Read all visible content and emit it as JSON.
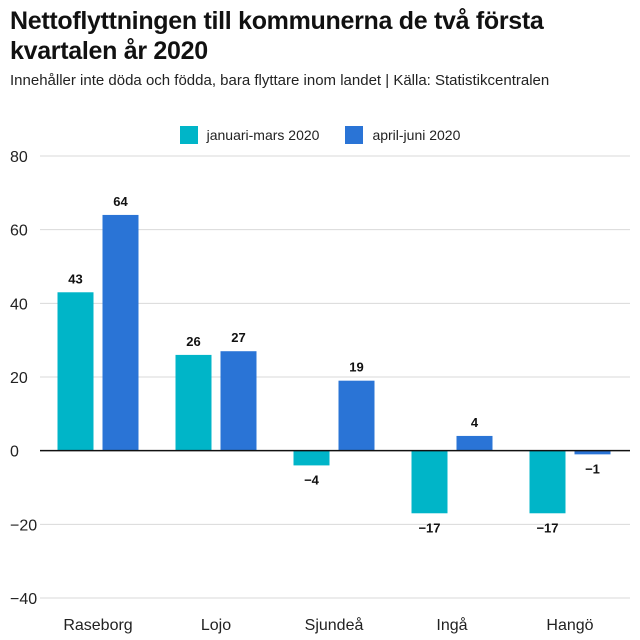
{
  "chart_data": {
    "type": "bar",
    "title": "Nettoflyttningen till kommunerna de två första kvartalen år 2020",
    "subtitle": "Innehåller inte döda och födda, bara flyttare inom landet | Källa: Statistikcentralen",
    "categories": [
      "Raseborg",
      "Lojo",
      "Sjundeå",
      "Ingå",
      "Hangö"
    ],
    "series": [
      {
        "name": "januari-mars 2020",
        "color": "#00b5c8",
        "values": [
          43,
          26,
          -4,
          -17,
          -17
        ]
      },
      {
        "name": "april-juni 2020",
        "color": "#2a74d6",
        "values": [
          64,
          27,
          19,
          4,
          -1
        ]
      }
    ],
    "ylim": [
      -40,
      80
    ],
    "yticks": [
      80,
      60,
      40,
      20,
      0,
      -20,
      -40
    ],
    "grid": true,
    "legend": "top-center",
    "xlabel": "",
    "ylabel": ""
  }
}
